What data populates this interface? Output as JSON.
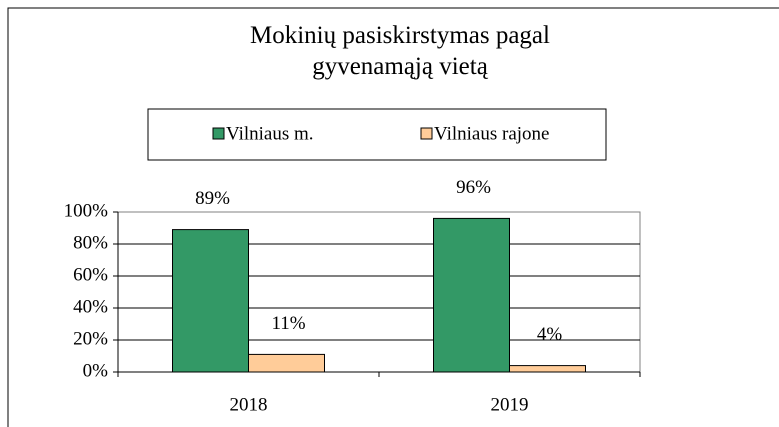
{
  "chart_data": {
    "type": "bar",
    "title": "Mokinių pasiskirstymas pagal gyvenamąją vietą",
    "categories": [
      "2018",
      "2019"
    ],
    "series": [
      {
        "name": "Vilniaus m.",
        "color": "#339966",
        "values": [
          89,
          96
        ],
        "value_labels": [
          "89%",
          "96%"
        ]
      },
      {
        "name": "Vilniaus rajone",
        "color": "#ffcc99",
        "values": [
          11,
          4
        ],
        "value_labels": [
          "11%",
          "4%"
        ]
      }
    ],
    "ylim": [
      0,
      100
    ],
    "yticks": [
      {
        "value": 0,
        "label": "0%"
      },
      {
        "value": 20,
        "label": "20%"
      },
      {
        "value": 40,
        "label": "40%"
      },
      {
        "value": 60,
        "label": "60%"
      },
      {
        "value": 80,
        "label": "80%"
      },
      {
        "value": 100,
        "label": "100%"
      }
    ],
    "grid": true,
    "legend": "top"
  }
}
